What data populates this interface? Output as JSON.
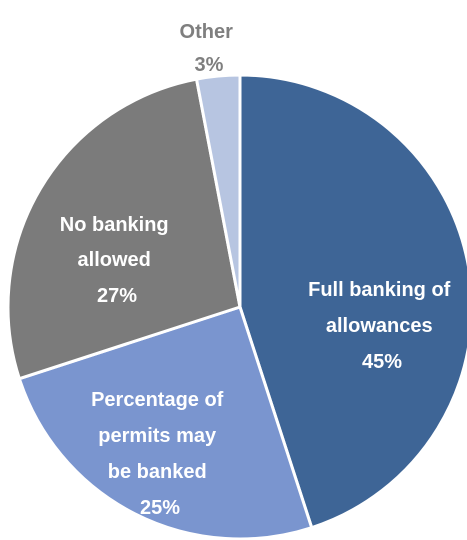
{
  "chart_data": {
    "type": "pie",
    "title": "",
    "slices": [
      {
        "key": "full",
        "label_lines": [
          "Full banking of",
          "allowances"
        ],
        "value_label": "45%",
        "value": 45,
        "color": "#3E6596",
        "label_color": "#ffffff"
      },
      {
        "key": "percentage",
        "label_lines": [
          "Percentage of",
          "permits may",
          "be banked"
        ],
        "value_label": "25%",
        "value": 25,
        "color": "#7A95CF",
        "label_color": "#ffffff"
      },
      {
        "key": "none",
        "label_lines": [
          "No banking",
          "allowed"
        ],
        "value_label": "27%",
        "value": 27,
        "color": "#7B7B7B",
        "label_color": "#ffffff"
      },
      {
        "key": "other",
        "label_lines": [
          "Other"
        ],
        "value_label": "3%",
        "value": 3,
        "color": "#B7C5E1",
        "label_color": "#7F7F7F"
      }
    ]
  }
}
